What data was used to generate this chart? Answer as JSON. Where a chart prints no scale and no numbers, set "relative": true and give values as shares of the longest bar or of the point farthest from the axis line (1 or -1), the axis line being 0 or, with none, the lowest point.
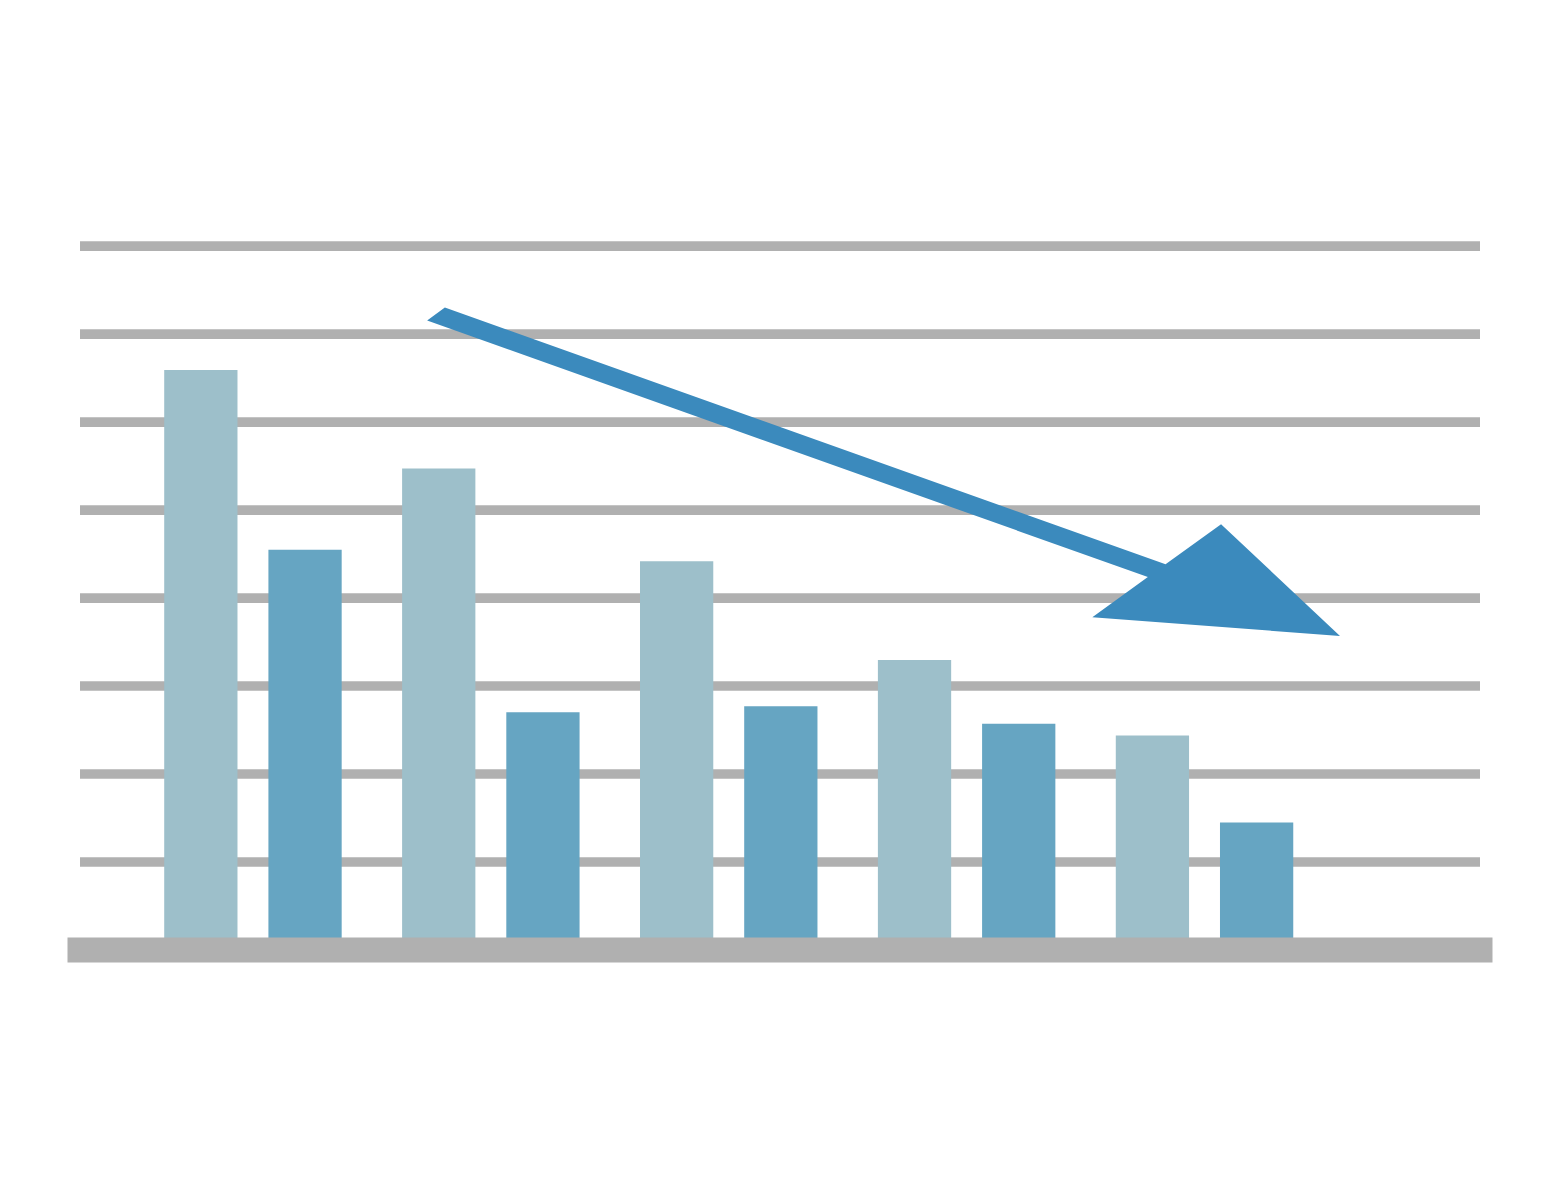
{
  "chart_data": {
    "type": "bar",
    "relative": true,
    "grid": "y",
    "categories": [
      null,
      null,
      null,
      null,
      null
    ],
    "series": [
      {
        "color": "#9dbfca",
        "values": [
          1,
          0.83,
          0.67,
          0.5,
          0.37
        ]
      },
      {
        "color": "#66a5c2",
        "values": [
          0.69,
          0.41,
          0.42,
          0.39,
          0.22
        ]
      }
    ]
  }
}
